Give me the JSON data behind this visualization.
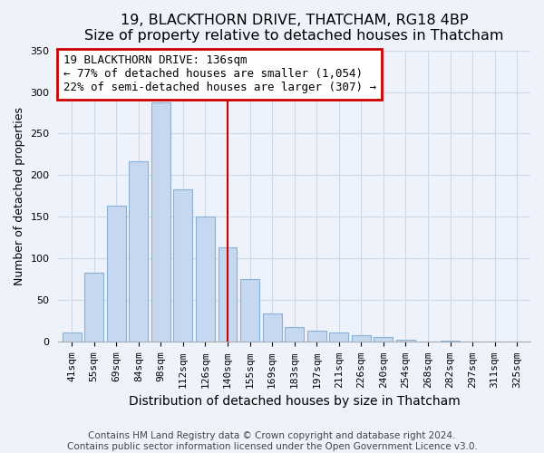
{
  "title": "19, BLACKTHORN DRIVE, THATCHAM, RG18 4BP",
  "subtitle": "Size of property relative to detached houses in Thatcham",
  "xlabel": "Distribution of detached houses by size in Thatcham",
  "ylabel": "Number of detached properties",
  "bar_labels": [
    "41sqm",
    "55sqm",
    "69sqm",
    "84sqm",
    "98sqm",
    "112sqm",
    "126sqm",
    "140sqm",
    "155sqm",
    "169sqm",
    "183sqm",
    "197sqm",
    "211sqm",
    "226sqm",
    "240sqm",
    "254sqm",
    "268sqm",
    "282sqm",
    "297sqm",
    "311sqm",
    "325sqm"
  ],
  "bar_values": [
    11,
    83,
    164,
    217,
    287,
    183,
    150,
    114,
    75,
    34,
    18,
    13,
    11,
    8,
    6,
    3,
    1,
    2,
    1,
    0,
    1
  ],
  "bar_color": "#c5d8f0",
  "bar_edge_color": "#8ab0d8",
  "vline_color": "#cc0000",
  "annotation_title": "19 BLACKTHORN DRIVE: 136sqm",
  "annotation_line1": "← 77% of detached houses are smaller (1,054)",
  "annotation_line2": "22% of semi-detached houses are larger (307) →",
  "annotation_box_color": "#ffffff",
  "annotation_box_edge": "#cc0000",
  "ylim": [
    0,
    350
  ],
  "yticks": [
    0,
    50,
    100,
    150,
    200,
    250,
    300,
    350
  ],
  "footer1": "Contains HM Land Registry data © Crown copyright and database right 2024.",
  "footer2": "Contains public sector information licensed under the Open Government Licence v3.0.",
  "title_fontsize": 11.5,
  "subtitle_fontsize": 10,
  "xlabel_fontsize": 10,
  "ylabel_fontsize": 9,
  "tick_fontsize": 8,
  "annotation_fontsize": 9,
  "footer_fontsize": 7.5,
  "grid_color": "#d0d8e8",
  "background_color": "#eef3fb"
}
